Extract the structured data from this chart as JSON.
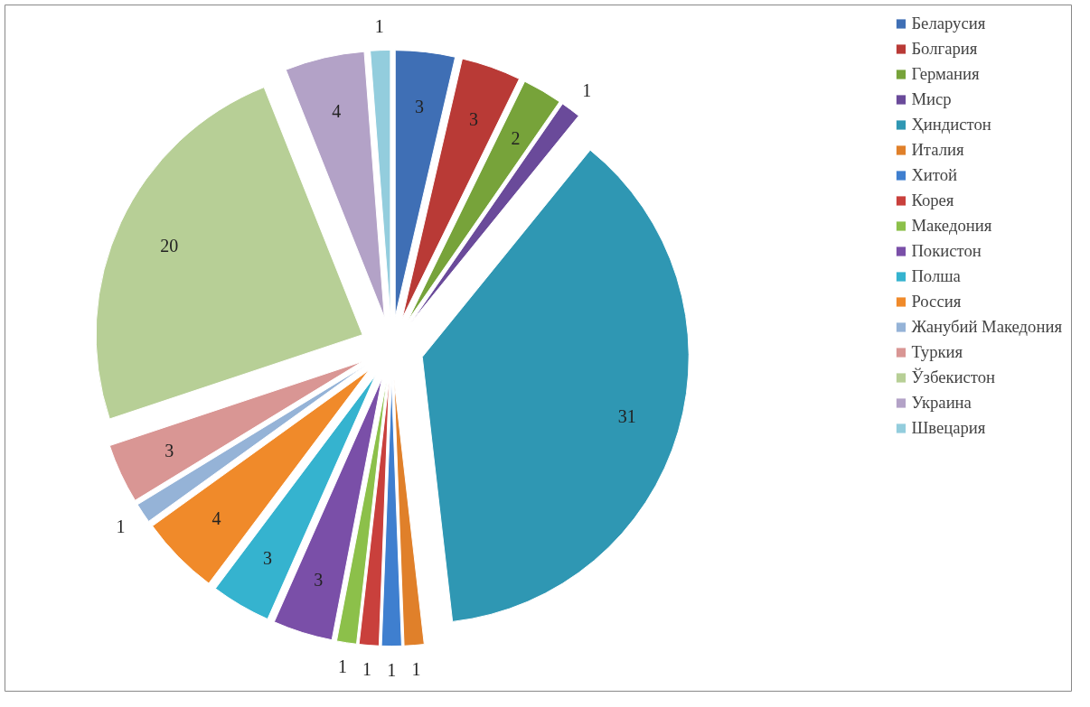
{
  "chart_data": {
    "type": "pie",
    "categories": [
      "Беларусия",
      "Болгария",
      "Германия",
      "Миср",
      "Ҳиндистон",
      "Италия",
      "Хитой",
      "Корея",
      "Македония",
      "Покистон",
      "Полша",
      "Россия",
      "Жанубий Македония",
      "Туркия",
      "Ўзбекистон",
      "Украина",
      "Швецария"
    ],
    "values": [
      3,
      3,
      2,
      1,
      31,
      1,
      1,
      1,
      1,
      3,
      3,
      4,
      1,
      3,
      20,
      4,
      1
    ],
    "colors": [
      "#3f6fb5",
      "#b93a36",
      "#77a33a",
      "#6a4a9a",
      "#2f97b3",
      "#e0802a",
      "#3f7fcf",
      "#c9403c",
      "#8cc04a",
      "#7a4fa8",
      "#35b3cf",
      "#f08a2a",
      "#95b3d7",
      "#d99694",
      "#b7cf96",
      "#b3a2c7",
      "#93cddd"
    ],
    "data_labels": true,
    "legend": "right"
  }
}
